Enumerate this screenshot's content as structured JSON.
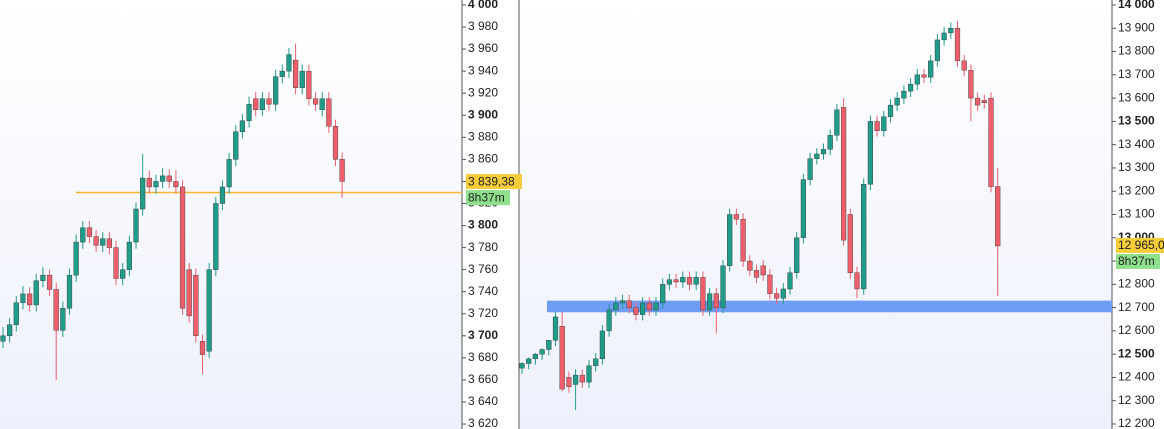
{
  "chart_data": [
    {
      "type": "candlestick",
      "up_color": "#1f9c8a",
      "down_color": "#ee5f6b",
      "ylim": [
        3615.5,
        4004.5
      ],
      "yticks": [
        {
          "value": 3620,
          "label": "3 620"
        },
        {
          "value": 3640,
          "label": "3 640"
        },
        {
          "value": 3660,
          "label": "3 660"
        },
        {
          "value": 3680,
          "label": "3 680"
        },
        {
          "value": 3700,
          "label": "3 700"
        },
        {
          "value": 3720,
          "label": "3 720"
        },
        {
          "value": 3740,
          "label": "3 740"
        },
        {
          "value": 3760,
          "label": "3 760"
        },
        {
          "value": 3780,
          "label": "3 780"
        },
        {
          "value": 3800,
          "label": "3 800"
        },
        {
          "value": 3820,
          "label": "3 820"
        },
        {
          "value": 3840,
          "label": "3 840"
        },
        {
          "value": 3860,
          "label": "3 860"
        },
        {
          "value": 3880,
          "label": "3 880"
        },
        {
          "value": 3900,
          "label": "3 900"
        },
        {
          "value": 3920,
          "label": "3 920"
        },
        {
          "value": 3940,
          "label": "3 940"
        },
        {
          "value": 3960,
          "label": "3 960"
        },
        {
          "value": 3980,
          "label": "3 980"
        },
        {
          "value": 4000,
          "label": "4 000"
        }
      ],
      "open": [
        3695,
        3700,
        3710,
        3730,
        3738,
        3728,
        3750,
        3755,
        3742,
        3705,
        3725,
        3755,
        3785,
        3798,
        3790,
        3782,
        3788,
        3780,
        3752,
        3760,
        3785,
        3815,
        3843,
        3835,
        3840,
        3845,
        3840,
        3835,
        3760,
        3755,
        3695,
        3686,
        3760,
        3820,
        3835,
        3860,
        3885,
        3895,
        3915,
        3905,
        3915,
        3910,
        3935,
        3940,
        3950,
        3925,
        3940,
        3915,
        3905,
        3915,
        3890,
        3860
      ],
      "high": [
        3708,
        3716,
        3736,
        3745,
        3744,
        3756,
        3762,
        3760,
        3748,
        3731,
        3761,
        3792,
        3804,
        3804,
        3796,
        3794,
        3794,
        3786,
        3766,
        3791,
        3821,
        3865,
        3850,
        3846,
        3852,
        3851,
        3850,
        3841,
        3766,
        3761,
        3701,
        3766,
        3826,
        3841,
        3866,
        3891,
        3901,
        3917,
        3921,
        3921,
        3921,
        3941,
        3946,
        3961,
        3965,
        3946,
        3946,
        3921,
        3921,
        3921,
        3896,
        3866
      ],
      "low": [
        3689,
        3694,
        3704,
        3724,
        3722,
        3722,
        3744,
        3736,
        3660,
        3699,
        3719,
        3749,
        3779,
        3784,
        3776,
        3776,
        3774,
        3746,
        3746,
        3754,
        3779,
        3809,
        3829,
        3829,
        3834,
        3834,
        3829,
        3719,
        3712,
        3694,
        3665,
        3680,
        3754,
        3814,
        3829,
        3854,
        3879,
        3889,
        3899,
        3899,
        3904,
        3904,
        3929,
        3934,
        3919,
        3919,
        3909,
        3904,
        3899,
        3884,
        3854,
        3825
      ],
      "close": [
        3700,
        3710,
        3730,
        3738,
        3728,
        3750,
        3755,
        3742,
        3705,
        3725,
        3755,
        3785,
        3798,
        3790,
        3782,
        3788,
        3780,
        3752,
        3760,
        3785,
        3815,
        3843,
        3835,
        3840,
        3845,
        3840,
        3835,
        3725,
        3718,
        3700,
        3683,
        3760,
        3820,
        3835,
        3860,
        3885,
        3895,
        3910,
        3905,
        3915,
        3910,
        3935,
        3940,
        3955,
        3925,
        3940,
        3915,
        3910,
        3915,
        3890,
        3860,
        3840
      ],
      "level": 3830,
      "level_color": "#f5b731",
      "current_price": {
        "value": 3839.38,
        "label": "3 839,38"
      },
      "timer": "8h37m"
    },
    {
      "type": "candlestick",
      "up_color": "#1f9c8a",
      "down_color": "#ee5f6b",
      "ylim": [
        12178.5,
        14021.5
      ],
      "yticks": [
        {
          "value": 12200,
          "label": "12 200"
        },
        {
          "value": 12300,
          "label": "12 300"
        },
        {
          "value": 12400,
          "label": "12 400"
        },
        {
          "value": 12500,
          "label": "12 500"
        },
        {
          "value": 12600,
          "label": "12 600"
        },
        {
          "value": 12700,
          "label": "12 700"
        },
        {
          "value": 12800,
          "label": "12 800"
        },
        {
          "value": 12900,
          "label": "12 900"
        },
        {
          "value": 13000,
          "label": "13 000"
        },
        {
          "value": 13100,
          "label": "13 100"
        },
        {
          "value": 13200,
          "label": "13 200"
        },
        {
          "value": 13300,
          "label": "13 300"
        },
        {
          "value": 13400,
          "label": "13 400"
        },
        {
          "value": 13500,
          "label": "13 500"
        },
        {
          "value": 13600,
          "label": "13 600"
        },
        {
          "value": 13700,
          "label": "13 700"
        },
        {
          "value": 13800,
          "label": "13 800"
        },
        {
          "value": 13900,
          "label": "13 900"
        },
        {
          "value": 14000,
          "label": "14 000"
        }
      ],
      "open": [
        12440,
        12460,
        12480,
        12500,
        12520,
        12560,
        12620,
        12400,
        12370,
        12410,
        12380,
        12450,
        12480,
        12600,
        12690,
        12720,
        12730,
        12700,
        12670,
        12720,
        12690,
        12720,
        12800,
        12820,
        12810,
        12830,
        12800,
        12830,
        12690,
        12760,
        12700,
        12880,
        13100,
        13080,
        12900,
        12860,
        12880,
        12840,
        12760,
        12740,
        12780,
        12850,
        13000,
        13250,
        13340,
        13360,
        13380,
        13440,
        13560,
        13100,
        12850,
        12780,
        13230,
        13500,
        13460,
        13520,
        13570,
        13600,
        13630,
        13660,
        13700,
        13690,
        13760,
        13850,
        13880,
        13900,
        13760,
        13720,
        13600,
        13590,
        13600,
        13220
      ],
      "high": [
        12465,
        12485,
        12505,
        12525,
        12545,
        12685,
        12680,
        12425,
        12435,
        12435,
        12475,
        12505,
        12625,
        12715,
        12745,
        12755,
        12755,
        12725,
        12745,
        12745,
        12745,
        12825,
        12845,
        12845,
        12855,
        12855,
        12855,
        12855,
        12785,
        12785,
        12905,
        13125,
        13125,
        13105,
        12925,
        12885,
        12905,
        12865,
        12785,
        12805,
        12875,
        13025,
        13275,
        13365,
        13385,
        13405,
        13465,
        13575,
        13600,
        13125,
        12875,
        13255,
        13525,
        13525,
        13545,
        13595,
        13625,
        13655,
        13685,
        13725,
        13725,
        13785,
        13875,
        13905,
        13925,
        13930,
        13785,
        13745,
        13625,
        13615,
        13625,
        13300
      ],
      "low": [
        12415,
        12435,
        12455,
        12475,
        12495,
        12535,
        12340,
        12335,
        12260,
        12355,
        12355,
        12425,
        12455,
        12575,
        12665,
        12695,
        12675,
        12645,
        12645,
        12665,
        12665,
        12695,
        12775,
        12785,
        12785,
        12775,
        12775,
        12665,
        12665,
        12590,
        12675,
        12855,
        13055,
        12875,
        12835,
        12805,
        12815,
        12735,
        12715,
        12715,
        12755,
        12825,
        12975,
        13225,
        13315,
        13335,
        13355,
        13415,
        12965,
        12825,
        12740,
        12755,
        13205,
        13435,
        13435,
        13495,
        13545,
        13575,
        13605,
        13635,
        13665,
        13665,
        13735,
        13825,
        13855,
        13735,
        13695,
        13500,
        13545,
        13555,
        13195,
        12750
      ],
      "close": [
        12460,
        12480,
        12500,
        12520,
        12560,
        12660,
        12350,
        12360,
        12410,
        12380,
        12450,
        12480,
        12600,
        12690,
        12720,
        12730,
        12700,
        12670,
        12720,
        12690,
        12720,
        12800,
        12820,
        12810,
        12830,
        12800,
        12830,
        12690,
        12760,
        12700,
        12880,
        13100,
        13080,
        12900,
        12860,
        12830,
        12840,
        12760,
        12740,
        12780,
        12850,
        13000,
        13250,
        13340,
        13360,
        13380,
        13440,
        13550,
        12990,
        12850,
        12780,
        13230,
        13500,
        13460,
        13520,
        13570,
        13600,
        13630,
        13660,
        13700,
        13690,
        13760,
        13850,
        13880,
        13900,
        13760,
        13720,
        13600,
        13570,
        13580,
        13220,
        12965
      ],
      "zone": [
        12680,
        12730
      ],
      "zone_color": "#6f9cf5",
      "current_price": {
        "value": 12965,
        "label": "12 965,0"
      },
      "timer": "8h37m"
    }
  ]
}
